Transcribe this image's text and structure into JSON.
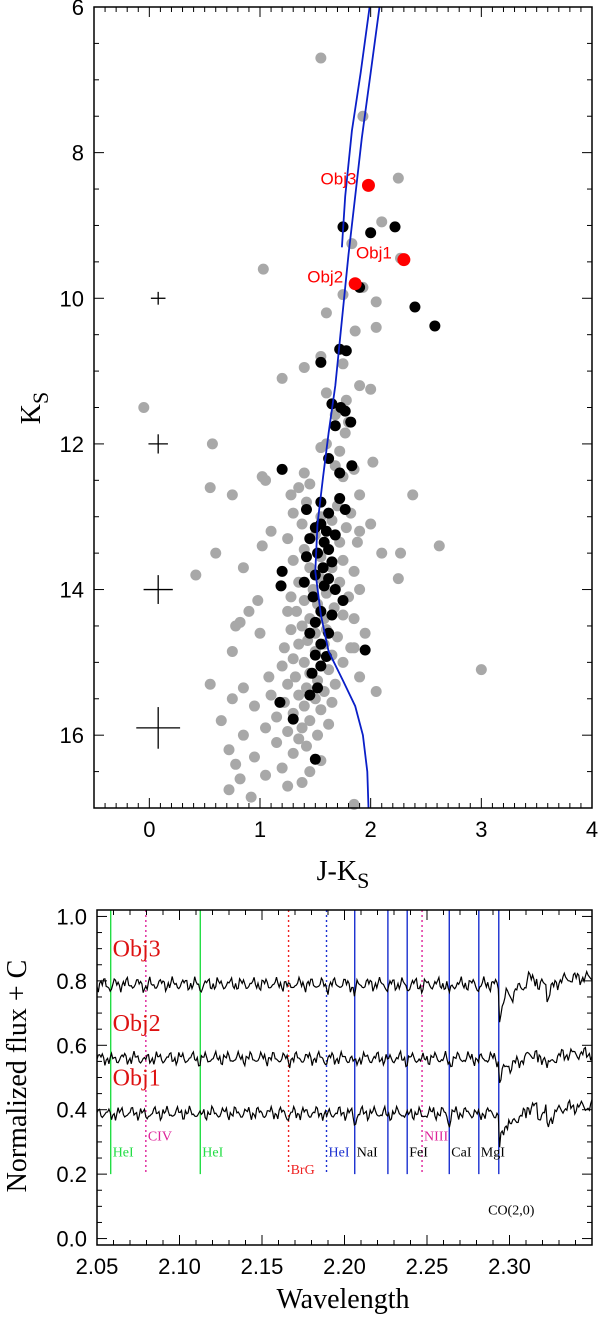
{
  "chart_data": [
    {
      "type": "scatter",
      "xlabel": "J-K",
      "xlabel_sub": "S",
      "ylabel": "K",
      "ylabel_sub": "S",
      "xlim": [
        -0.5,
        4
      ],
      "ylim": [
        17,
        6
      ],
      "y_inverted": true,
      "x_ticks": [
        "0",
        "1",
        "2",
        "3",
        "4"
      ],
      "y_ticks": [
        "6",
        "8",
        "10",
        "12",
        "14",
        "16"
      ],
      "colors": {
        "field": "#a8a8a8",
        "members": "#000000",
        "objects": "#ff0000",
        "isochrone": "#0a1fc8"
      },
      "field_stars": [
        [
          1.55,
          6.7
        ],
        [
          1.93,
          7.5
        ],
        [
          2.25,
          8.35
        ],
        [
          2.1,
          8.95
        ],
        [
          1.83,
          9.25
        ],
        [
          1.03,
          9.6
        ],
        [
          2.27,
          9.45
        ],
        [
          1.93,
          9.85
        ],
        [
          1.75,
          9.95
        ],
        [
          2.05,
          10.05
        ],
        [
          1.6,
          10.2
        ],
        [
          2.05,
          10.4
        ],
        [
          1.86,
          10.45
        ],
        [
          1.2,
          11.1
        ],
        [
          1.55,
          10.8
        ],
        [
          1.75,
          10.9
        ],
        [
          1.4,
          10.95
        ],
        [
          1.9,
          11.2
        ],
        [
          2.0,
          11.25
        ],
        [
          1.6,
          11.3
        ],
        [
          1.78,
          11.4
        ],
        [
          1.68,
          11.6
        ],
        [
          1.8,
          11.7
        ],
        [
          -0.05,
          11.5
        ],
        [
          1.77,
          11.85
        ],
        [
          1.6,
          12.0
        ],
        [
          1.72,
          12.1
        ],
        [
          1.55,
          12.05
        ],
        [
          0.57,
          12.0
        ],
        [
          1.68,
          12.3
        ],
        [
          1.4,
          12.4
        ],
        [
          1.75,
          12.45
        ],
        [
          1.02,
          12.45
        ],
        [
          1.05,
          12.5
        ],
        [
          1.45,
          12.55
        ],
        [
          1.35,
          12.6
        ],
        [
          1.85,
          12.35
        ],
        [
          2.02,
          12.25
        ],
        [
          0.55,
          12.6
        ],
        [
          0.75,
          12.7
        ],
        [
          2.38,
          12.7
        ],
        [
          1.28,
          12.7
        ],
        [
          1.42,
          12.8
        ],
        [
          1.9,
          12.7
        ],
        [
          1.7,
          12.85
        ],
        [
          1.82,
          12.95
        ],
        [
          1.3,
          12.95
        ],
        [
          1.55,
          13.0
        ],
        [
          1.65,
          13.05
        ],
        [
          1.38,
          13.1
        ],
        [
          1.78,
          13.15
        ],
        [
          1.9,
          13.2
        ],
        [
          1.5,
          13.25
        ],
        [
          1.25,
          13.3
        ],
        [
          1.72,
          13.35
        ],
        [
          1.88,
          13.35
        ],
        [
          1.02,
          13.4
        ],
        [
          1.4,
          13.45
        ],
        [
          2.27,
          13.5
        ],
        [
          2.62,
          13.4
        ],
        [
          1.55,
          13.55
        ],
        [
          1.75,
          13.6
        ],
        [
          1.3,
          13.6
        ],
        [
          1.45,
          13.7
        ],
        [
          1.65,
          13.7
        ],
        [
          0.85,
          13.7
        ],
        [
          1.85,
          13.75
        ],
        [
          1.55,
          13.85
        ],
        [
          0.42,
          13.8
        ],
        [
          1.35,
          13.9
        ],
        [
          2.25,
          13.85
        ],
        [
          1.72,
          13.9
        ],
        [
          1.48,
          14.0
        ],
        [
          1.6,
          14.05
        ],
        [
          1.28,
          14.1
        ],
        [
          1.4,
          14.15
        ],
        [
          1.8,
          14.1
        ],
        [
          1.9,
          14.0
        ],
        [
          0.98,
          14.15
        ],
        [
          1.52,
          14.2
        ],
        [
          1.67,
          14.25
        ],
        [
          1.33,
          14.3
        ],
        [
          1.25,
          14.3
        ],
        [
          1.45,
          14.4
        ],
        [
          1.58,
          14.4
        ],
        [
          1.75,
          14.35
        ],
        [
          1.85,
          14.4
        ],
        [
          0.82,
          14.45
        ],
        [
          1.38,
          14.5
        ],
        [
          1.6,
          14.55
        ],
        [
          1.28,
          14.55
        ],
        [
          1.5,
          14.6
        ],
        [
          1.7,
          14.65
        ],
        [
          1.95,
          14.6
        ],
        [
          0.78,
          14.5
        ],
        [
          1.43,
          14.7
        ],
        [
          1.58,
          14.75
        ],
        [
          1.35,
          14.75
        ],
        [
          1.22,
          14.8
        ],
        [
          1.82,
          14.8
        ],
        [
          1.5,
          14.85
        ],
        [
          1.65,
          14.9
        ],
        [
          1.3,
          14.95
        ],
        [
          0.75,
          14.85
        ],
        [
          1.4,
          15.0
        ],
        [
          1.55,
          15.05
        ],
        [
          1.2,
          15.05
        ],
        [
          1.75,
          15.0
        ],
        [
          1.45,
          15.15
        ],
        [
          1.62,
          15.1
        ],
        [
          1.32,
          15.2
        ],
        [
          1.08,
          15.2
        ],
        [
          1.52,
          15.25
        ],
        [
          0.55,
          15.3
        ],
        [
          1.68,
          15.3
        ],
        [
          1.25,
          15.3
        ],
        [
          1.42,
          15.35
        ],
        [
          0.85,
          15.35
        ],
        [
          1.58,
          15.4
        ],
        [
          1.35,
          15.45
        ],
        [
          1.1,
          15.45
        ],
        [
          1.5,
          15.5
        ],
        [
          0.75,
          15.5
        ],
        [
          1.65,
          15.55
        ],
        [
          1.22,
          15.55
        ],
        [
          1.4,
          15.6
        ],
        [
          0.95,
          15.6
        ],
        [
          1.55,
          15.65
        ],
        [
          1.3,
          15.7
        ],
        [
          1.15,
          15.75
        ],
        [
          0.65,
          15.8
        ],
        [
          1.45,
          15.8
        ],
        [
          1.62,
          15.85
        ],
        [
          1.38,
          15.9
        ],
        [
          1.05,
          15.9
        ],
        [
          1.25,
          15.95
        ],
        [
          1.52,
          16.0
        ],
        [
          0.85,
          16.0
        ],
        [
          1.35,
          16.05
        ],
        [
          1.15,
          16.1
        ],
        [
          1.42,
          16.15
        ],
        [
          0.72,
          16.2
        ],
        [
          1.3,
          16.25
        ],
        [
          0.95,
          16.3
        ],
        [
          1.55,
          16.35
        ],
        [
          0.78,
          16.4
        ],
        [
          1.2,
          16.45
        ],
        [
          1.45,
          16.5
        ],
        [
          1.05,
          16.55
        ],
        [
          0.82,
          16.6
        ],
        [
          1.38,
          16.65
        ],
        [
          1.25,
          16.7
        ],
        [
          0.72,
          16.75
        ],
        [
          0.92,
          16.85
        ],
        [
          1.85,
          16.95
        ],
        [
          3.0,
          15.1
        ],
        [
          1.85,
          14.8
        ],
        [
          2.05,
          15.4
        ],
        [
          1.9,
          15.2
        ],
        [
          1.0,
          14.6
        ],
        [
          0.9,
          14.3
        ],
        [
          2.1,
          13.5
        ],
        [
          2.0,
          13.1
        ],
        [
          1.1,
          13.2
        ],
        [
          0.6,
          13.5
        ]
      ],
      "member_stars": [
        [
          1.75,
          9.02
        ],
        [
          2.0,
          9.1
        ],
        [
          2.22,
          9.02
        ],
        [
          1.9,
          9.85
        ],
        [
          2.4,
          10.12
        ],
        [
          2.58,
          10.38
        ],
        [
          1.72,
          10.7
        ],
        [
          1.78,
          10.72
        ],
        [
          1.55,
          10.88
        ],
        [
          1.65,
          11.45
        ],
        [
          1.73,
          11.5
        ],
        [
          1.77,
          11.55
        ],
        [
          1.82,
          11.7
        ],
        [
          1.68,
          11.75
        ],
        [
          1.62,
          12.2
        ],
        [
          1.83,
          12.3
        ],
        [
          1.2,
          12.35
        ],
        [
          1.72,
          12.4
        ],
        [
          1.42,
          12.9
        ],
        [
          1.55,
          12.8
        ],
        [
          1.62,
          12.95
        ],
        [
          1.72,
          12.75
        ],
        [
          1.77,
          12.9
        ],
        [
          1.55,
          13.1
        ],
        [
          1.5,
          13.15
        ],
        [
          1.6,
          13.2
        ],
        [
          1.68,
          13.25
        ],
        [
          1.45,
          13.3
        ],
        [
          1.58,
          13.35
        ],
        [
          1.62,
          13.45
        ],
        [
          1.52,
          13.5
        ],
        [
          1.42,
          13.55
        ],
        [
          1.65,
          13.62
        ],
        [
          1.57,
          13.7
        ],
        [
          1.2,
          13.75
        ],
        [
          1.5,
          13.8
        ],
        [
          1.62,
          13.85
        ],
        [
          1.4,
          13.9
        ],
        [
          1.58,
          13.95
        ],
        [
          1.19,
          13.95
        ],
        [
          1.68,
          14.0
        ],
        [
          1.48,
          14.1
        ],
        [
          1.75,
          14.15
        ],
        [
          1.55,
          14.3
        ],
        [
          1.65,
          14.35
        ],
        [
          1.5,
          14.45
        ],
        [
          1.45,
          14.6
        ],
        [
          1.62,
          14.6
        ],
        [
          1.55,
          14.75
        ],
        [
          1.5,
          14.9
        ],
        [
          1.6,
          14.92
        ],
        [
          1.55,
          15.05
        ],
        [
          1.47,
          15.15
        ],
        [
          1.52,
          15.35
        ],
        [
          1.95,
          14.83
        ],
        [
          1.45,
          15.45
        ],
        [
          1.18,
          15.55
        ],
        [
          1.3,
          15.78
        ],
        [
          1.5,
          16.33
        ]
      ],
      "objects": [
        {
          "label": "Obj3",
          "x": 1.98,
          "y": 8.45
        },
        {
          "label": "Obj1",
          "x": 2.3,
          "y": 9.47
        },
        {
          "label": "Obj2",
          "x": 1.86,
          "y": 9.8
        }
      ],
      "error_bars": [
        {
          "y": 10.0,
          "dx": 0.03,
          "dy": 0.04
        },
        {
          "y": 12.0,
          "dx": 0.04,
          "dy": 0.06
        },
        {
          "y": 14.0,
          "dx": 0.06,
          "dy": 0.09
        },
        {
          "y": 15.9,
          "dx": 0.09,
          "dy": 0.13
        }
      ],
      "isochrone": [
        [
          1.98,
          17.0
        ],
        [
          1.97,
          16.5
        ],
        [
          1.93,
          16.0
        ],
        [
          1.86,
          15.6
        ],
        [
          1.75,
          15.25
        ],
        [
          1.62,
          14.85
        ],
        [
          1.55,
          14.35
        ],
        [
          1.5,
          13.75
        ],
        [
          1.52,
          13.1
        ],
        [
          1.57,
          12.45
        ],
        [
          1.62,
          11.85
        ],
        [
          1.68,
          11.2
        ],
        [
          1.72,
          10.6
        ],
        [
          1.76,
          10.0
        ],
        [
          1.8,
          9.4
        ],
        [
          1.86,
          8.6
        ],
        [
          1.92,
          7.8
        ],
        [
          2.0,
          6.9
        ],
        [
          2.08,
          6.0
        ]
      ],
      "isochrone_branch": [
        [
          1.74,
          9.3
        ],
        [
          1.77,
          8.6
        ],
        [
          1.83,
          7.7
        ],
        [
          1.91,
          6.9
        ],
        [
          1.99,
          6.0
        ]
      ]
    },
    {
      "type": "line",
      "xlabel": "Wavelength",
      "ylabel": "Normalized flux + C",
      "xlim": [
        2.05,
        2.35
      ],
      "ylim": [
        -0.02,
        1.02
      ],
      "x_ticks": [
        "2.05",
        "2.10",
        "2.15",
        "2.20",
        "2.25",
        "2.30"
      ],
      "y_ticks": [
        "0.0",
        "0.2",
        "0.4",
        "0.6",
        "0.8",
        "1.0"
      ],
      "series": [
        {
          "name": "Obj3",
          "offset": 0.79,
          "color": "#000000"
        },
        {
          "name": "Obj2",
          "offset": 0.56,
          "color": "#000000"
        },
        {
          "name": "Obj1",
          "offset": 0.39,
          "color": "#000000"
        }
      ],
      "annotations": [
        {
          "label": "HeI",
          "x": 2.0583,
          "color": "#22dd44",
          "style": "solid"
        },
        {
          "label": "CIV",
          "x": 2.0796,
          "color": "#dd2299",
          "style": "dotted"
        },
        {
          "label": "HeI",
          "x": 2.1126,
          "color": "#22dd44",
          "style": "solid"
        },
        {
          "label": "BrG",
          "x": 2.1661,
          "color": "#ee2222",
          "style": "dotted"
        },
        {
          "label": "HeI",
          "x": 2.1891,
          "color": "#1a2fd0",
          "style": "dotted"
        },
        {
          "label": "NaI",
          "x": 2.2062,
          "color": "#1a2fd0",
          "style": "solid"
        },
        {
          "label": "",
          "x": 2.2263,
          "color": "#1a2fd0",
          "style": "solid"
        },
        {
          "label": "FeI",
          "x": 2.238,
          "color": "#1a2fd0",
          "style": "solid"
        },
        {
          "label": "NIII",
          "x": 2.247,
          "color": "#dd2299",
          "style": "dotted"
        },
        {
          "label": "CaI",
          "x": 2.2635,
          "color": "#1a2fd0",
          "style": "solid"
        },
        {
          "label": "MgI",
          "x": 2.2814,
          "color": "#1a2fd0",
          "style": "solid"
        },
        {
          "label": "",
          "x": 2.2935,
          "color": "#1a2fd0",
          "style": "solid"
        }
      ],
      "text_labels": [
        {
          "text": "CO(2,0)",
          "x": 2.295,
          "y": 0.075
        }
      ]
    }
  ]
}
